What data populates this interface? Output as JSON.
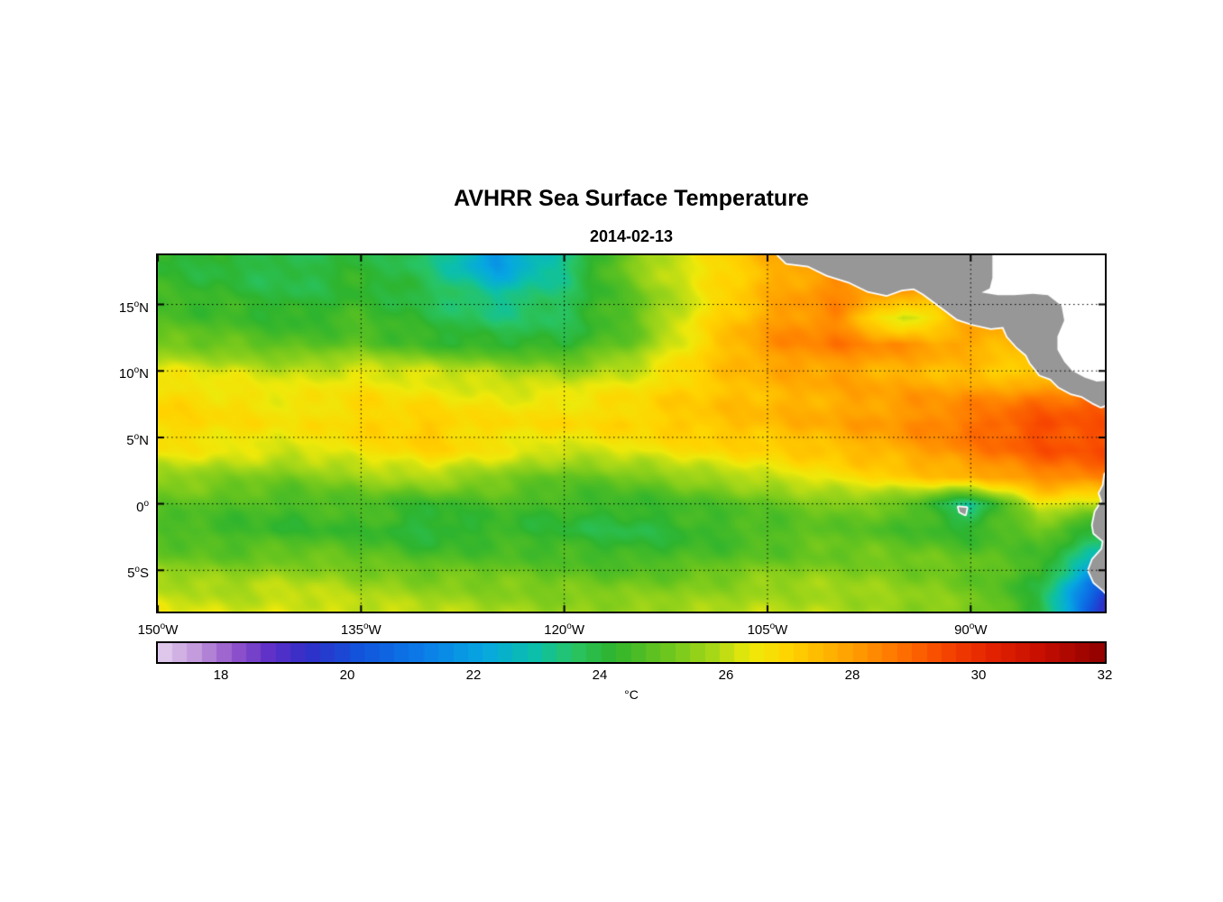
{
  "title": "AVHRR Sea Surface Temperature",
  "subtitle": "2014-02-13",
  "colorbar": {
    "label": "°C",
    "range": [
      17,
      32
    ],
    "ticks": [
      18,
      20,
      22,
      24,
      26,
      28,
      30,
      32
    ]
  },
  "axes": {
    "x": {
      "degree": "o",
      "lim": [
        -150,
        -80.1
      ],
      "ticks": [
        {
          "label": "150",
          "suffix": "W",
          "value": -150
        },
        {
          "label": "135",
          "suffix": "W",
          "value": -135
        },
        {
          "label": "120",
          "suffix": "W",
          "value": -120
        },
        {
          "label": "105",
          "suffix": "W",
          "value": -105
        },
        {
          "label": "90",
          "suffix": "W",
          "value": -90
        }
      ]
    },
    "y": {
      "degree": "o",
      "lim": [
        -8.1,
        18.7
      ],
      "ticks": [
        {
          "label": "15",
          "suffix": "N",
          "value": 15
        },
        {
          "label": "10",
          "suffix": "N",
          "value": 10
        },
        {
          "label": "5",
          "suffix": "N",
          "value": 5
        },
        {
          "label": "0",
          "suffix": "",
          "value": 0
        },
        {
          "label": "5",
          "suffix": "S",
          "value": -5
        }
      ]
    }
  },
  "chart_data": {
    "type": "heatmap",
    "title": "AVHRR Sea Surface Temperature",
    "subtitle": "2014-02-13",
    "units": "°C",
    "xlim": [
      -150,
      -80.1
    ],
    "ylim": [
      -8.1,
      18.7
    ],
    "colorbar_range": [
      17,
      32
    ],
    "colorbar_ticks": [
      18,
      20,
      22,
      24,
      26,
      28,
      30,
      32
    ],
    "lon": [
      -150,
      -145,
      -140,
      -135,
      -130,
      -125,
      -120,
      -115,
      -110,
      -105,
      -100,
      -95,
      -90,
      -85,
      -80
    ],
    "lat": [
      18,
      16,
      14,
      12,
      10,
      8,
      6,
      4,
      2,
      0,
      -2,
      -4,
      -6,
      -8
    ],
    "sst": [
      [
        24.2,
        24.0,
        23.8,
        24.2,
        23.6,
        21.8,
        23.2,
        25.4,
        26.6,
        27.6,
        28.2,
        28.4,
        28.2,
        28.0,
        28.0
      ],
      [
        24.4,
        24.2,
        23.9,
        24.3,
        23.8,
        23.0,
        23.6,
        25.0,
        26.4,
        27.6,
        28.3,
        28.2,
        28.0,
        27.8,
        27.8
      ],
      [
        24.6,
        24.5,
        24.2,
        24.5,
        24.0,
        23.5,
        23.8,
        24.8,
        26.6,
        27.9,
        28.4,
        25.8,
        27.8,
        27.9,
        27.9
      ],
      [
        25.2,
        25.0,
        24.7,
        24.9,
        24.4,
        24.2,
        24.1,
        25.1,
        26.9,
        28.2,
        28.6,
        28.2,
        27.8,
        27.4,
        27.6
      ],
      [
        26.4,
        26.2,
        26.0,
        26.3,
        26.1,
        25.8,
        25.6,
        26.1,
        27.1,
        27.7,
        27.9,
        27.6,
        27.3,
        26.8,
        27.8
      ],
      [
        26.9,
        26.7,
        26.5,
        26.8,
        26.6,
        26.4,
        26.5,
        26.8,
        27.2,
        27.5,
        27.8,
        28.0,
        28.2,
        28.6,
        29.0
      ],
      [
        27.0,
        26.8,
        26.6,
        27.0,
        27.2,
        26.8,
        26.8,
        27.0,
        27.3,
        27.5,
        27.8,
        28.2,
        28.8,
        29.4,
        29.2
      ],
      [
        26.6,
        26.4,
        26.2,
        26.6,
        27.0,
        26.5,
        26.1,
        26.4,
        26.8,
        27.0,
        27.4,
        27.8,
        28.5,
        29.2,
        29.4
      ],
      [
        25.6,
        25.4,
        25.2,
        25.6,
        25.9,
        25.4,
        24.9,
        25.1,
        25.6,
        26.1,
        26.6,
        27.1,
        27.6,
        28.3,
        28.6
      ],
      [
        24.9,
        24.7,
        24.5,
        24.7,
        24.3,
        24.6,
        24.4,
        24.3,
        24.6,
        24.9,
        25.3,
        25.0,
        23.2,
        26.4,
        25.8
      ],
      [
        24.6,
        24.4,
        24.3,
        24.4,
        23.9,
        24.3,
        24.1,
        23.9,
        24.3,
        24.6,
        24.9,
        24.6,
        24.2,
        25.0,
        23.8
      ],
      [
        25.1,
        24.9,
        25.1,
        24.9,
        24.6,
        24.7,
        24.6,
        24.4,
        24.6,
        24.9,
        25.1,
        25.1,
        24.9,
        24.6,
        22.6
      ],
      [
        25.9,
        25.7,
        25.9,
        25.6,
        25.4,
        25.3,
        25.1,
        25.1,
        25.3,
        25.6,
        25.6,
        25.4,
        25.1,
        24.2,
        20.2
      ],
      [
        26.3,
        26.1,
        26.3,
        26.1,
        25.9,
        25.7,
        25.6,
        25.6,
        25.7,
        25.9,
        25.9,
        25.6,
        25.3,
        24.1,
        19.2
      ]
    ],
    "colormap": [
      {
        "value": 17.0,
        "color": "#e4d2ee"
      },
      {
        "value": 17.6,
        "color": "#c39add"
      },
      {
        "value": 18.2,
        "color": "#9355cb"
      },
      {
        "value": 18.8,
        "color": "#5d2fc8"
      },
      {
        "value": 19.4,
        "color": "#2f2fc8"
      },
      {
        "value": 20.2,
        "color": "#1254dc"
      },
      {
        "value": 21.2,
        "color": "#0b7ce8"
      },
      {
        "value": 22.2,
        "color": "#06a8e0"
      },
      {
        "value": 23.0,
        "color": "#0cc0a8"
      },
      {
        "value": 23.6,
        "color": "#28c464"
      },
      {
        "value": 24.2,
        "color": "#2eb42e"
      },
      {
        "value": 25.0,
        "color": "#66c41e"
      },
      {
        "value": 25.8,
        "color": "#a8d818"
      },
      {
        "value": 26.4,
        "color": "#eee90a"
      },
      {
        "value": 27.0,
        "color": "#ffd400"
      },
      {
        "value": 27.8,
        "color": "#ffaa00"
      },
      {
        "value": 28.6,
        "color": "#ff7c00"
      },
      {
        "value": 29.4,
        "color": "#f84a00"
      },
      {
        "value": 30.2,
        "color": "#e32200"
      },
      {
        "value": 31.0,
        "color": "#c60e00"
      },
      {
        "value": 32.0,
        "color": "#8e0000"
      }
    ],
    "grid": {
      "style": "dotted",
      "color": "#000000"
    },
    "land": {
      "color": "#979797",
      "coast_halo": "#ffffff",
      "missing_color": "#ffffff",
      "polygons": {
        "mexico_central_america": [
          [
            -104.3,
            18.8
          ],
          [
            -103.6,
            18.1
          ],
          [
            -102.0,
            17.9
          ],
          [
            -100.6,
            17.2
          ],
          [
            -99.0,
            16.7
          ],
          [
            -97.6,
            16.0
          ],
          [
            -96.2,
            15.7
          ],
          [
            -95.1,
            16.1
          ],
          [
            -94.2,
            16.2
          ],
          [
            -93.5,
            15.8
          ],
          [
            -92.3,
            14.9
          ],
          [
            -91.0,
            13.9
          ],
          [
            -89.8,
            13.5
          ],
          [
            -88.5,
            13.2
          ],
          [
            -87.6,
            13.3
          ],
          [
            -87.3,
            12.6
          ],
          [
            -86.6,
            11.8
          ],
          [
            -85.9,
            11.2
          ],
          [
            -85.6,
            10.6
          ],
          [
            -85.2,
            10.1
          ],
          [
            -84.9,
            9.7
          ],
          [
            -84.1,
            9.4
          ],
          [
            -83.5,
            8.8
          ],
          [
            -82.6,
            8.3
          ],
          [
            -81.8,
            8.1
          ],
          [
            -81.0,
            7.6
          ],
          [
            -80.4,
            7.3
          ],
          [
            -79.9,
            7.5
          ],
          [
            -79.4,
            7.7
          ],
          [
            -79.4,
            18.8
          ]
        ],
        "caribbean_mask": [
          [
            -88.4,
            18.8
          ],
          [
            -88.4,
            17.0
          ],
          [
            -88.6,
            16.2
          ],
          [
            -89.2,
            15.9
          ],
          [
            -88.0,
            15.7
          ],
          [
            -86.8,
            15.7
          ],
          [
            -85.4,
            15.8
          ],
          [
            -84.3,
            15.7
          ],
          [
            -83.3,
            14.9
          ],
          [
            -83.1,
            13.8
          ],
          [
            -83.6,
            12.6
          ],
          [
            -83.6,
            11.6
          ],
          [
            -83.1,
            10.7
          ],
          [
            -82.5,
            10.0
          ],
          [
            -81.6,
            9.5
          ],
          [
            -80.7,
            9.2
          ],
          [
            -79.4,
            9.3
          ],
          [
            -79.4,
            18.8
          ]
        ],
        "south_america": [
          [
            -79.4,
            3.0
          ],
          [
            -80.1,
            2.2
          ],
          [
            -80.2,
            1.4
          ],
          [
            -80.5,
            0.8
          ],
          [
            -80.3,
            0.2
          ],
          [
            -80.8,
            -0.6
          ],
          [
            -81.0,
            -1.6
          ],
          [
            -80.9,
            -2.2
          ],
          [
            -80.2,
            -2.8
          ],
          [
            -80.3,
            -3.4
          ],
          [
            -81.0,
            -4.2
          ],
          [
            -81.3,
            -5.0
          ],
          [
            -80.9,
            -5.9
          ],
          [
            -80.2,
            -6.5
          ],
          [
            -79.6,
            -7.2
          ],
          [
            -79.3,
            -7.9
          ],
          [
            -79.4,
            -8.6
          ]
        ],
        "galapagos": [
          [
            -90.9,
            -0.25
          ],
          [
            -90.3,
            -0.3
          ],
          [
            -90.4,
            -0.8
          ],
          [
            -90.8,
            -0.6
          ]
        ]
      }
    }
  }
}
